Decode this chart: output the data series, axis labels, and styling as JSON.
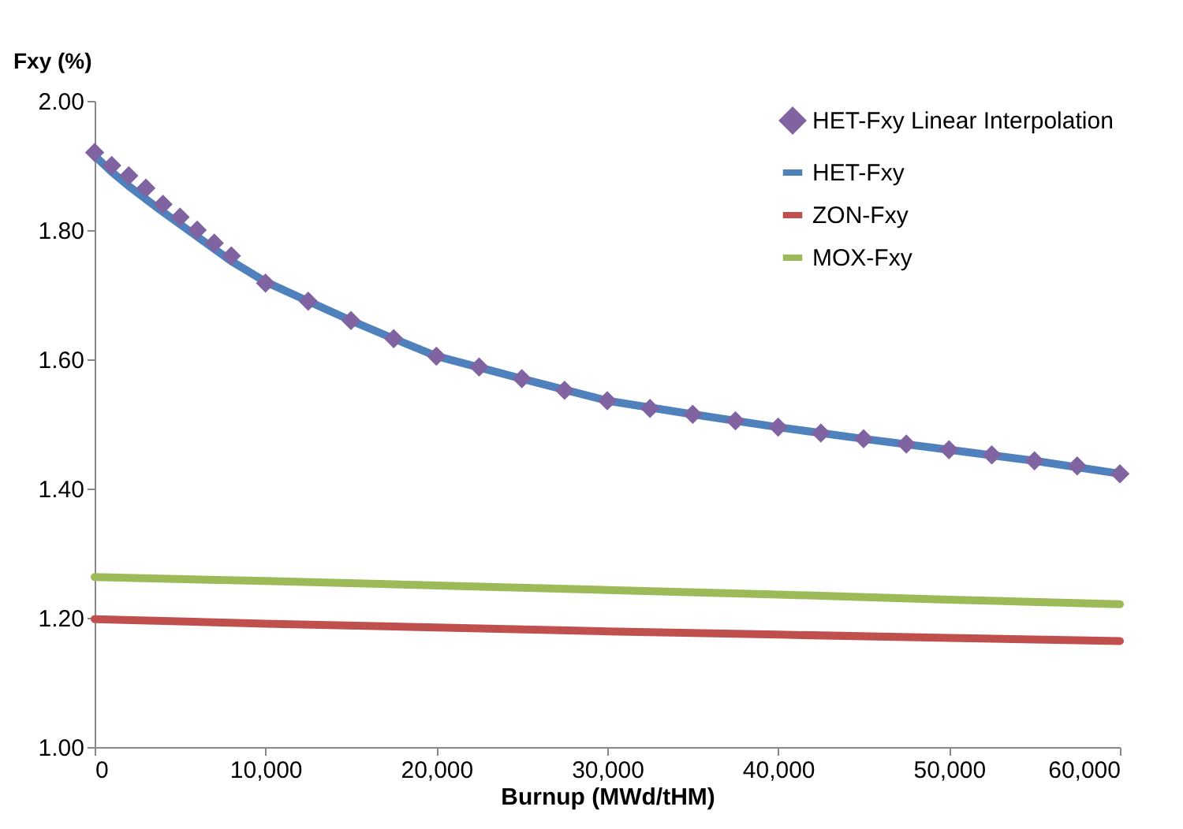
{
  "chart_data": {
    "type": "line",
    "xlabel": "Burnup (MWd/tHM)",
    "ylabel": "Fxy (%)",
    "xlim": [
      0,
      60000
    ],
    "ylim": [
      1.0,
      2.0
    ],
    "xticks": [
      {
        "value": 0,
        "label": "0"
      },
      {
        "value": 10000,
        "label": "10,000"
      },
      {
        "value": 20000,
        "label": "20,000"
      },
      {
        "value": 30000,
        "label": "30,000"
      },
      {
        "value": 40000,
        "label": "40,000"
      },
      {
        "value": 50000,
        "label": "50,000"
      },
      {
        "value": 60000,
        "label": "60,000"
      }
    ],
    "yticks": [
      {
        "value": 1.0,
        "label": "1.00"
      },
      {
        "value": 1.2,
        "label": "1.20"
      },
      {
        "value": 1.4,
        "label": "1.40"
      },
      {
        "value": 1.6,
        "label": "1.60"
      },
      {
        "value": 1.8,
        "label": "1.80"
      },
      {
        "value": 2.0,
        "label": "2.00"
      }
    ],
    "grid": false,
    "legend": "top right",
    "series": [
      {
        "name": "HET-Fxy Linear Interpolation",
        "type": "scatter",
        "marker": "diamond",
        "color": "#8064a2",
        "x": [
          0,
          1000,
          2000,
          3000,
          4000,
          5000,
          6000,
          7000,
          8000,
          10000,
          12500,
          15000,
          17500,
          20000,
          22500,
          25000,
          27500,
          30000,
          32500,
          35000,
          37500,
          40000,
          42500,
          45000,
          47500,
          50000,
          52500,
          55000,
          57500,
          60000
        ],
        "values": [
          1.92,
          1.9,
          1.884,
          1.865,
          1.84,
          1.82,
          1.8,
          1.78,
          1.76,
          1.718,
          1.69,
          1.66,
          1.632,
          1.605,
          1.588,
          1.57,
          1.552,
          1.536,
          1.524,
          1.515,
          1.505,
          1.495,
          1.486,
          1.477,
          1.469,
          1.46,
          1.452,
          1.443,
          1.435,
          1.423
        ]
      },
      {
        "name": "HET-Fxy",
        "type": "line",
        "color": "#4f81bd",
        "x": [
          0,
          1000,
          2000,
          3000,
          4000,
          6000,
          8000,
          10000,
          12500,
          15000,
          17500,
          20000,
          25000,
          30000,
          35000,
          40000,
          45000,
          50000,
          55000,
          60000
        ],
        "values": [
          1.915,
          1.89,
          1.868,
          1.848,
          1.828,
          1.79,
          1.752,
          1.72,
          1.69,
          1.66,
          1.632,
          1.605,
          1.57,
          1.536,
          1.515,
          1.495,
          1.477,
          1.46,
          1.443,
          1.423
        ]
      },
      {
        "name": "ZON-Fxy",
        "type": "line",
        "color": "#c0504d",
        "x": [
          0,
          10000,
          20000,
          30000,
          40000,
          50000,
          60000
        ],
        "values": [
          1.198,
          1.191,
          1.185,
          1.179,
          1.174,
          1.169,
          1.164
        ]
      },
      {
        "name": "MOX-Fxy",
        "type": "line",
        "color": "#9bbb59",
        "x": [
          0,
          10000,
          20000,
          30000,
          40000,
          50000,
          60000
        ],
        "values": [
          1.263,
          1.257,
          1.25,
          1.243,
          1.236,
          1.228,
          1.221
        ]
      }
    ]
  }
}
